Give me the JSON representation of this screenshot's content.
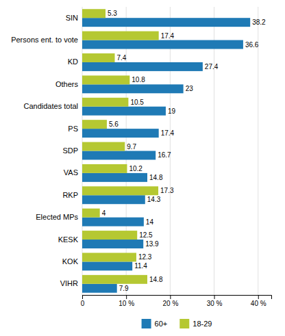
{
  "chart_data": {
    "type": "bar",
    "orientation": "horizontal",
    "categories": [
      "SIN",
      "Persons ent. to vote",
      "KD",
      "Others",
      "Candidates total",
      "PS",
      "SDP",
      "VAS",
      "RKP",
      "Elected MPs",
      "KESK",
      "KOK",
      "VIHR"
    ],
    "series": [
      {
        "name": "60+",
        "color": "#1f7ab5",
        "values": [
          38.2,
          36.6,
          27.4,
          23,
          19,
          17.4,
          16.7,
          14.8,
          14.3,
          14,
          13.9,
          11.4,
          7.9
        ]
      },
      {
        "name": "18-29",
        "color": "#b5c832",
        "values": [
          5.3,
          17.4,
          7.4,
          10.8,
          10.5,
          5.6,
          9.7,
          10.2,
          17.3,
          4,
          12.5,
          12.3,
          14.8
        ]
      }
    ],
    "xlim": [
      0,
      43
    ],
    "xticks": [
      0,
      {
        "value": 10,
        "label": "10 %"
      },
      {
        "value": 20,
        "label": "20 %"
      },
      {
        "value": 30,
        "label": "30 %"
      },
      {
        "value": 40,
        "label": "40 %"
      }
    ],
    "grid": true,
    "legend": "bottom",
    "data_labels": true
  }
}
